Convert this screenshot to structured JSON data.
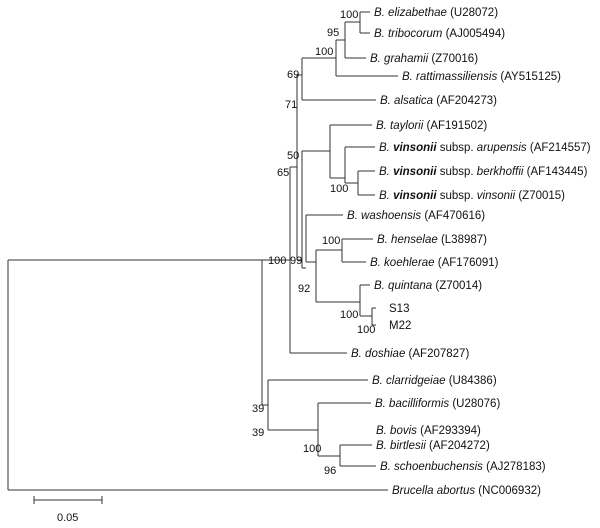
{
  "tree": {
    "leaves": {
      "elizabethae": {
        "parts": [
          [
            "B. elizabethae",
            "i"
          ],
          [
            " (U28072)",
            "n"
          ]
        ]
      },
      "tribocorum": {
        "parts": [
          [
            "B. tribocorum",
            "i"
          ],
          [
            " (AJ005494)",
            "n"
          ]
        ]
      },
      "grahamii": {
        "parts": [
          [
            "B. grahamii",
            "i"
          ],
          [
            " (Z70016)",
            "n"
          ]
        ]
      },
      "rattimassiliensis": {
        "parts": [
          [
            "B. rattimassiliensis",
            "i"
          ],
          [
            " (AY515125)",
            "n"
          ]
        ]
      },
      "alsatica": {
        "parts": [
          [
            "B. alsatica",
            "i"
          ],
          [
            " (AF204273)",
            "n"
          ]
        ]
      },
      "taylorii": {
        "parts": [
          [
            "B. taylorii",
            "i"
          ],
          [
            " (AF191502)",
            "n"
          ]
        ]
      },
      "arupensis": {
        "parts": [
          [
            "B. ",
            "i"
          ],
          [
            "vinsonii",
            "bi"
          ],
          [
            " subsp. ",
            "n"
          ],
          [
            "arupensis",
            "i"
          ],
          [
            " (AF214557)",
            "n"
          ]
        ]
      },
      "berkhoffii": {
        "parts": [
          [
            "B. ",
            "i"
          ],
          [
            "vinsonii",
            "bi"
          ],
          [
            " subsp. ",
            "n"
          ],
          [
            "berkhoffii",
            "i"
          ],
          [
            " (AF143445)",
            "n"
          ]
        ]
      },
      "vinsonii": {
        "parts": [
          [
            "B. ",
            "i"
          ],
          [
            "vinsonii",
            "bi"
          ],
          [
            " subsp. ",
            "n"
          ],
          [
            "vinsonii",
            "i"
          ],
          [
            " (Z70015)",
            "n"
          ]
        ]
      },
      "washoensis": {
        "parts": [
          [
            "B. washoensis",
            "i"
          ],
          [
            " (AF470616)",
            "n"
          ]
        ]
      },
      "henselae": {
        "parts": [
          [
            "B. henselae",
            "i"
          ],
          [
            " (L38987)",
            "n"
          ]
        ]
      },
      "koehlerae": {
        "parts": [
          [
            "B. koehlerae",
            "i"
          ],
          [
            " (AF176091)",
            "n"
          ]
        ]
      },
      "quintana": {
        "parts": [
          [
            "B. quintana",
            "i"
          ],
          [
            " (Z70014)",
            "n"
          ]
        ]
      },
      "s13": {
        "parts": [
          [
            "S13",
            "n"
          ]
        ]
      },
      "m22": {
        "parts": [
          [
            "M22",
            "n"
          ]
        ]
      },
      "doshiae": {
        "parts": [
          [
            "B. doshiae",
            "i"
          ],
          [
            " (AF207827)",
            "n"
          ]
        ]
      },
      "clarridgeiae": {
        "parts": [
          [
            "B. clarridgeiae",
            "i"
          ],
          [
            " (U84386)",
            "n"
          ]
        ]
      },
      "bacilliformis": {
        "parts": [
          [
            "B. bacilliformis",
            "i"
          ],
          [
            " (U28076)",
            "n"
          ]
        ]
      },
      "bovis": {
        "parts": [
          [
            "B. bovis",
            "i"
          ],
          [
            " (AF293394)",
            "n"
          ]
        ]
      },
      "birtlesii": {
        "parts": [
          [
            "B. birtlesii",
            "i"
          ],
          [
            " (AF204272)",
            "n"
          ]
        ]
      },
      "schoenbuchensis": {
        "parts": [
          [
            "B. schoenbuchensis",
            "i"
          ],
          [
            " (AJ278183)",
            "n"
          ]
        ]
      },
      "brucella": {
        "parts": [
          [
            "Brucella abortus",
            "i"
          ],
          [
            " (NC006932)",
            "n"
          ]
        ]
      }
    },
    "bootstrap": {
      "eliz_trib": "100",
      "eliz_grah": "95",
      "grah_ratt": "100",
      "ratt_alsa": "69",
      "vinsonii_group": "71",
      "taylorii_vinsonii": "50",
      "berk_vins": "100",
      "mid_clade": "65",
      "wash_group": "99",
      "hens_koeh": "100",
      "quintana_group": "92",
      "quin_s13": "100",
      "s13_m22": "100",
      "core": "100",
      "clar_bac": "39",
      "bac_bovis": "39",
      "bovis_group": "100",
      "birt_schoen": "96"
    },
    "scale_label": "0.05"
  }
}
